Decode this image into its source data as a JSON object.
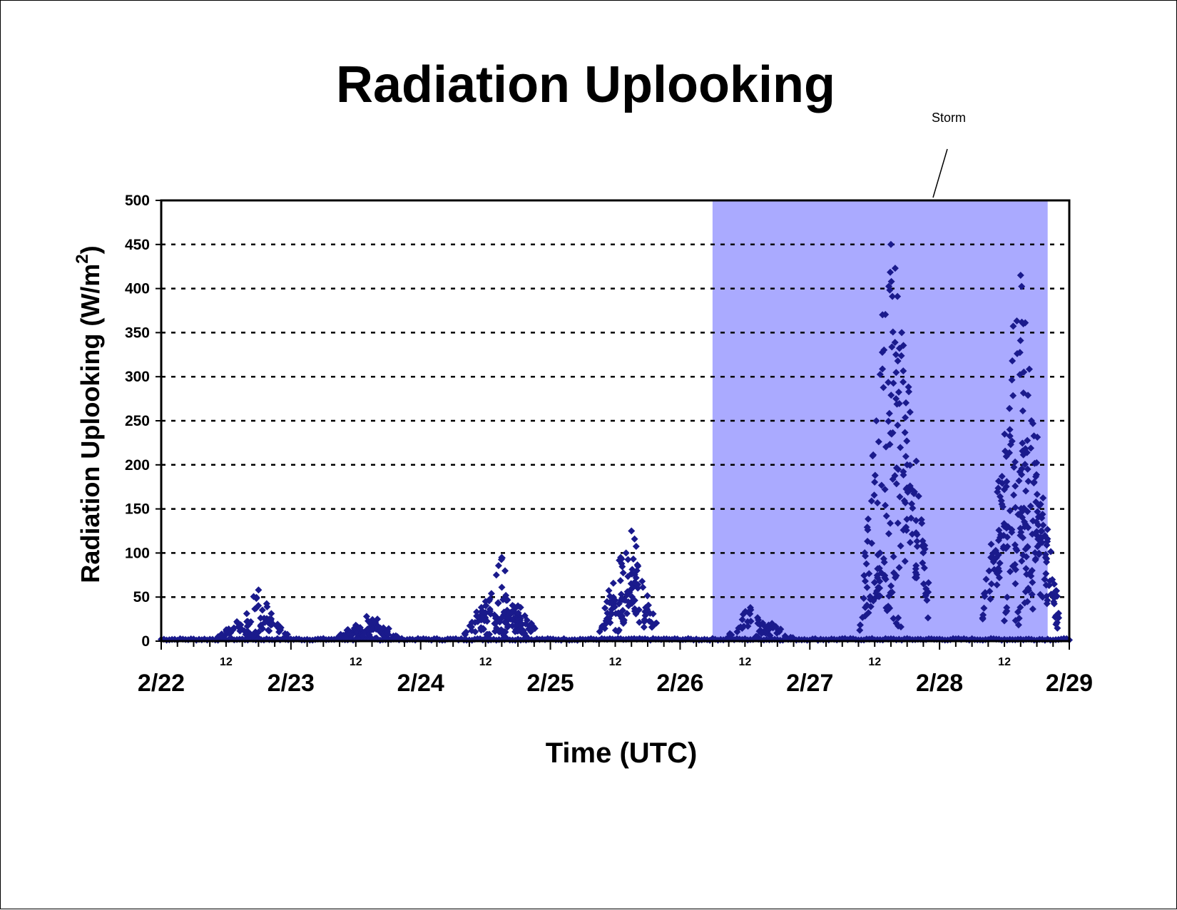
{
  "chart_data": {
    "type": "scatter",
    "title": "Radiation Uplooking",
    "xlabel": "Time (UTC)",
    "ylabel": "Radiation Uplooking (W/m",
    "ylabel_superscript": "2",
    "ylabel_suffix": ")",
    "ylim": [
      0,
      500
    ],
    "yticks": [
      0,
      50,
      100,
      150,
      200,
      250,
      300,
      350,
      400,
      450,
      500
    ],
    "ytick_labels": [
      "0",
      "50",
      "100",
      "150",
      "200",
      "250",
      "300",
      "350",
      "400",
      "450",
      "500"
    ],
    "xlim": [
      "2/22 00:00",
      "2/29 00:00"
    ],
    "date_labels": [
      "2/22",
      "2/23",
      "2/24",
      "2/25",
      "2/26",
      "2/27",
      "2/28",
      "2/29"
    ],
    "hour_label": "12",
    "grid": "horizontal dotted",
    "legend": "none",
    "marker": "diamond",
    "series_color": "#1a1a8c",
    "shaded_region": {
      "label": "Storm",
      "x_start": "2/26 06:00",
      "x_end": "2/28 20:00",
      "color": "#aaaaff"
    },
    "peaks": [
      {
        "x": "2/22 14:00",
        "y": 22
      },
      {
        "x": "2/22 18:00",
        "y": 58
      },
      {
        "x": "2/22 20:00",
        "y": 25
      },
      {
        "x": "2/23 12:00",
        "y": 18
      },
      {
        "x": "2/23 14:00",
        "y": 28
      },
      {
        "x": "2/23 16:00",
        "y": 25
      },
      {
        "x": "2/24 12:00",
        "y": 45
      },
      {
        "x": "2/24 14:00",
        "y": 75
      },
      {
        "x": "2/24 15:00",
        "y": 95
      },
      {
        "x": "2/24 16:00",
        "y": 35
      },
      {
        "x": "2/24 18:00",
        "y": 40
      },
      {
        "x": "2/25 13:00",
        "y": 95
      },
      {
        "x": "2/25 14:00",
        "y": 100
      },
      {
        "x": "2/25 15:00",
        "y": 125
      },
      {
        "x": "2/25 16:00",
        "y": 80
      },
      {
        "x": "2/26 13:00",
        "y": 38
      },
      {
        "x": "2/26 17:00",
        "y": 20
      },
      {
        "x": "2/27 13:00",
        "y": 100
      },
      {
        "x": "2/27 15:00",
        "y": 450
      },
      {
        "x": "2/27 17:00",
        "y": 350
      },
      {
        "x": "2/27 18:00",
        "y": 200
      },
      {
        "x": "2/28 13:00",
        "y": 240
      },
      {
        "x": "2/28 15:00",
        "y": 415
      },
      {
        "x": "2/28 17:00",
        "y": 250
      },
      {
        "x": "2/28 18:00",
        "y": 120
      }
    ]
  }
}
